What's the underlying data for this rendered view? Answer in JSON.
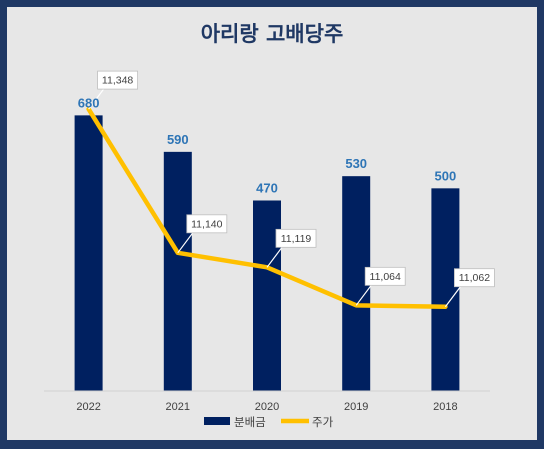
{
  "chart_data": {
    "type": "bar",
    "title": "아리랑 고배당주",
    "categories": [
      "2022",
      "2021",
      "2020",
      "2019",
      "2018"
    ],
    "series": [
      {
        "name": "분배금",
        "type": "bar",
        "color": "#002060",
        "values": [
          680,
          590,
          470,
          530,
          500
        ]
      },
      {
        "name": "주가",
        "type": "line",
        "color": "#ffc000",
        "values": [
          11348,
          11140,
          11119,
          11064,
          11062
        ]
      }
    ],
    "value_labels": [
      "680",
      "590",
      "470",
      "530",
      "500"
    ],
    "callout_labels": [
      "11,348",
      "11,140",
      "11,119",
      "11,064",
      "11,062"
    ],
    "ylim": [
      0,
      750
    ],
    "y2lim": [
      10940,
      11380
    ],
    "legend": "bottom",
    "grid": false
  }
}
